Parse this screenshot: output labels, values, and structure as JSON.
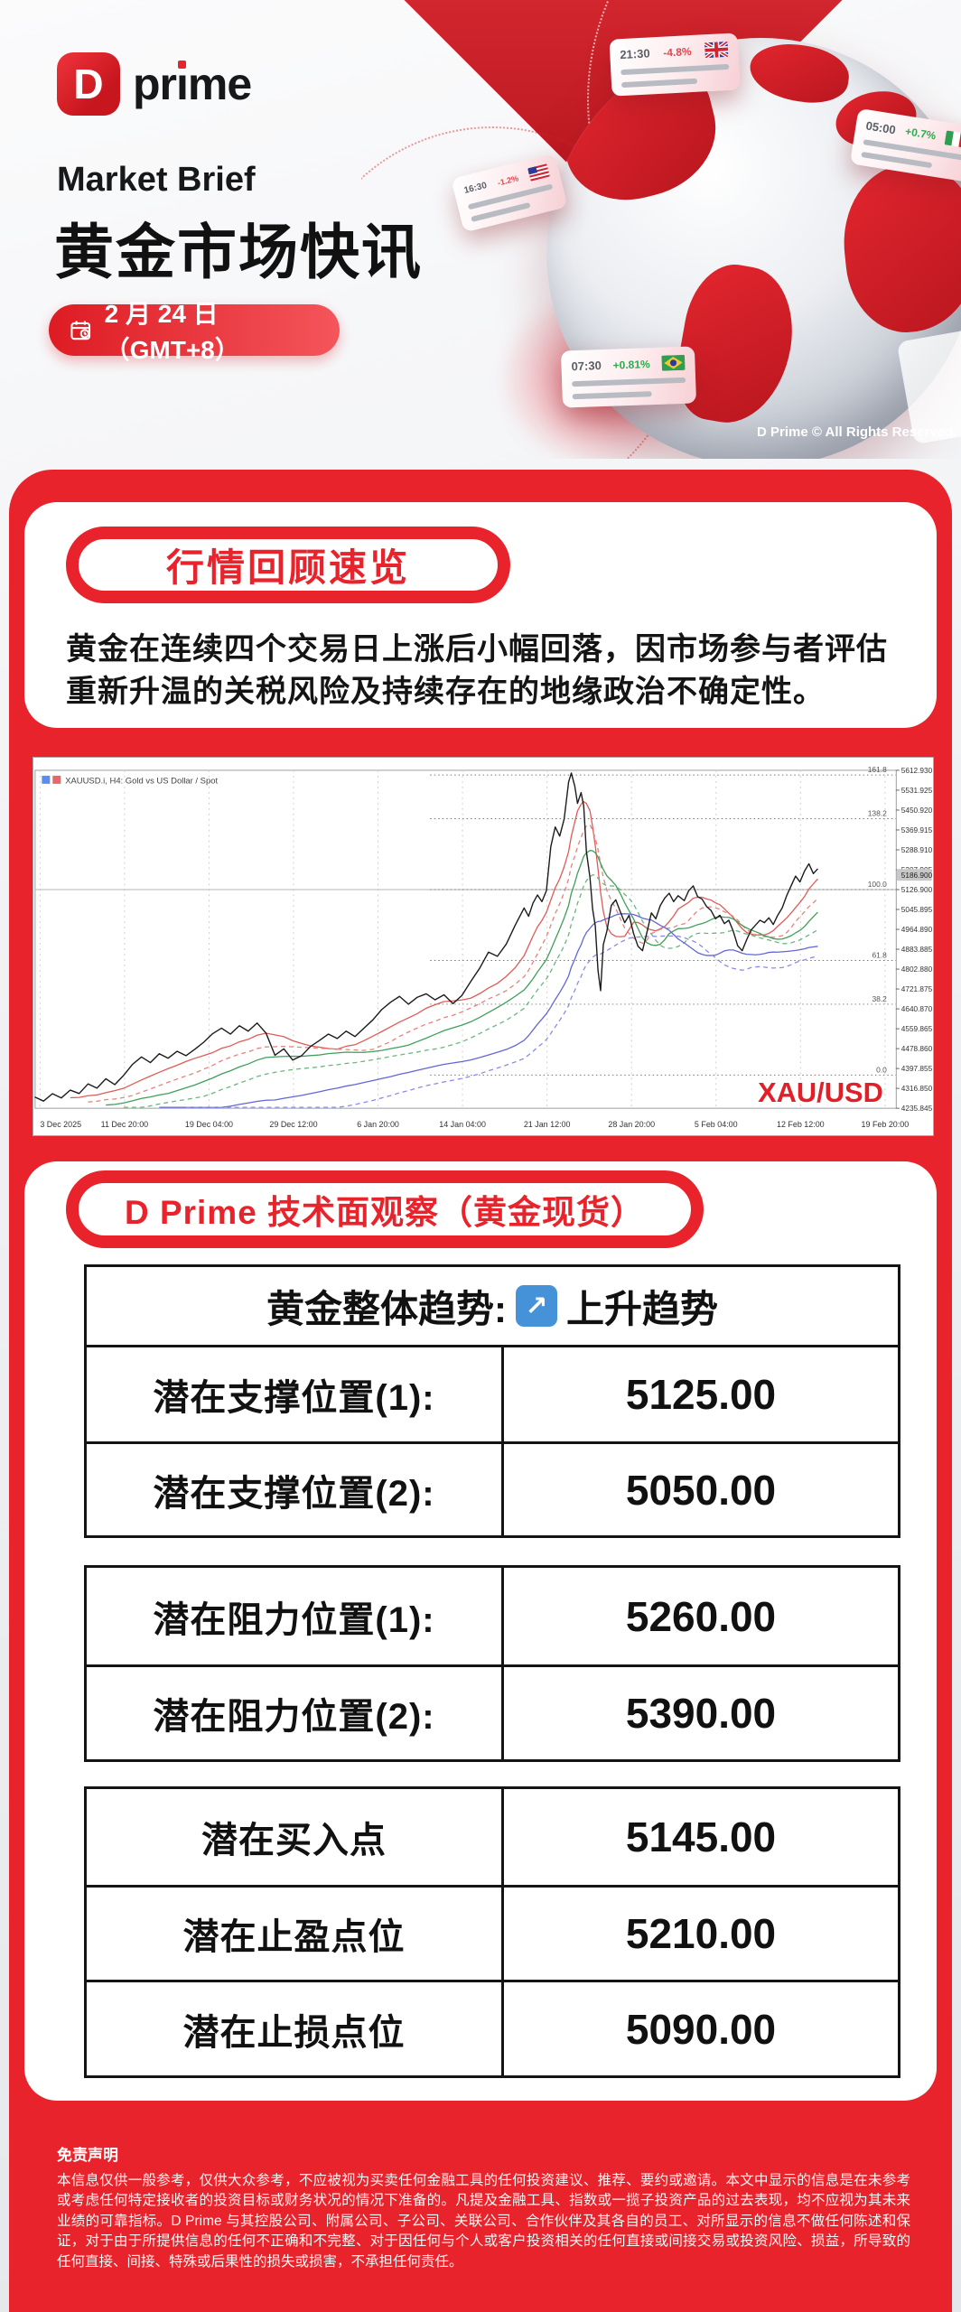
{
  "header": {
    "logo_letter": "D",
    "logo_word": "prime",
    "kicker": "Market Brief",
    "title": "黄金市场快讯",
    "date_badge": "2 月 24 日（GMT+8）",
    "copyright": "D Prime © All Rights Reserved.",
    "ticker_cards": [
      {
        "time": "21:30",
        "change": "-4.8%",
        "direction": "down",
        "flag": "uk"
      },
      {
        "time": "16:30",
        "change": "-1.2%",
        "direction": "down",
        "flag": "us"
      },
      {
        "time": "05:00",
        "change": "+0.7%",
        "direction": "up",
        "flag": "italy"
      },
      {
        "time": "07:30",
        "change": "+0.81%",
        "direction": "up",
        "flag": "brazil"
      }
    ]
  },
  "review": {
    "badge": "行情回顾速览",
    "paragraph": "黄金在连续四个交易日上涨后小幅回落，因市场参与者评估重新升温的关税风险及持续存在的地缘政治不确定性。"
  },
  "chart_data": {
    "type": "line",
    "title": "XAUUSD.i, H4: Gold vs US Dollar / Spot",
    "symbol_label": "XAU/USD",
    "xlabel": "",
    "ylabel": "",
    "ylim": [
      4235.845,
      5612.93
    ],
    "grid": true,
    "legend": "none",
    "y_axis_ticks": [
      5612.93,
      5531.925,
      5450.92,
      5369.915,
      5288.91,
      5207.905,
      5126.9,
      5045.895,
      4964.89,
      4883.885,
      4802.88,
      4721.875,
      4640.87,
      4559.865,
      4478.86,
      4397.855,
      4316.85,
      4235.845
    ],
    "h_line": 5126.9,
    "current_price": "5186.900",
    "x_ticks": [
      "3 Dec 2025",
      "11 Dec 20:00",
      "19 Dec 04:00",
      "29 Dec 12:00",
      "6 Jan 20:00",
      "14 Jan 04:00",
      "21 Jan 12:00",
      "28 Jan 20:00",
      "5 Feb 04:00",
      "12 Feb 12:00",
      "19 Feb 20:00"
    ],
    "fib_levels": [
      {
        "label": "161.8",
        "price": 5594.0
      },
      {
        "label": "138.2",
        "price": 5415.6
      },
      {
        "label": "100.0",
        "price": 5126.9
      },
      {
        "label": "61.8",
        "price": 4838.0
      },
      {
        "label": "38.2",
        "price": 4659.8
      },
      {
        "label": "0.0",
        "price": 4371.0
      }
    ],
    "moving_averages": [
      {
        "color": "#e05b55",
        "window": 8,
        "offset": 2,
        "dashed": false
      },
      {
        "color": "#e5827b",
        "window": 12,
        "offset": 9,
        "dashed": true
      },
      {
        "color": "#3f9f58",
        "window": 16,
        "offset": 15,
        "dashed": false
      },
      {
        "color": "#6ab67e",
        "window": 20,
        "offset": 25,
        "dashed": true
      },
      {
        "color": "#6366d4",
        "window": 28,
        "offset": 42,
        "dashed": false
      },
      {
        "color": "#8a8ce2",
        "window": 34,
        "offset": 56,
        "dashed": true
      }
    ],
    "series": [
      {
        "name": "XAUUSD H4 close",
        "color": "#1b1b1b",
        "points": [
          [
            0,
            4282
          ],
          [
            1,
            4265
          ],
          [
            2,
            4295
          ],
          [
            3,
            4278
          ],
          [
            4,
            4310
          ],
          [
            5,
            4296
          ],
          [
            6,
            4335
          ],
          [
            7,
            4318
          ],
          [
            8,
            4356
          ],
          [
            9,
            4332
          ],
          [
            10,
            4370
          ],
          [
            11,
            4415
          ],
          [
            12,
            4445
          ],
          [
            13,
            4422
          ],
          [
            14,
            4458
          ],
          [
            15,
            4440
          ],
          [
            16,
            4468
          ],
          [
            17,
            4450
          ],
          [
            18,
            4476
          ],
          [
            19,
            4505
          ],
          [
            20,
            4540
          ],
          [
            21,
            4562
          ],
          [
            22,
            4538
          ],
          [
            23,
            4572
          ],
          [
            24,
            4550
          ],
          [
            25,
            4583
          ],
          [
            26,
            4542
          ],
          [
            27,
            4452
          ],
          [
            28,
            4478
          ],
          [
            29,
            4432
          ],
          [
            30,
            4450
          ],
          [
            31,
            4488
          ],
          [
            32,
            4512
          ],
          [
            33,
            4538
          ],
          [
            34,
            4520
          ],
          [
            35,
            4550
          ],
          [
            36,
            4528
          ],
          [
            37,
            4562
          ],
          [
            38,
            4596
          ],
          [
            39,
            4638
          ],
          [
            40,
            4668
          ],
          [
            41,
            4692
          ],
          [
            42,
            4660
          ],
          [
            43,
            4688
          ],
          [
            44,
            4702
          ],
          [
            45,
            4678
          ],
          [
            46,
            4698
          ],
          [
            47,
            4662
          ],
          [
            48,
            4695
          ],
          [
            49,
            4752
          ],
          [
            50,
            4806
          ],
          [
            51,
            4872
          ],
          [
            52,
            4855
          ],
          [
            53,
            4905
          ],
          [
            54,
            4982
          ],
          [
            55,
            5052
          ],
          [
            55.5,
            5018
          ],
          [
            56,
            5072
          ],
          [
            56.5,
            5105
          ],
          [
            57,
            5078
          ],
          [
            57.5,
            5122
          ],
          [
            58,
            5302
          ],
          [
            58.5,
            5382
          ],
          [
            59,
            5345
          ],
          [
            59.5,
            5415
          ],
          [
            60,
            5565
          ],
          [
            60.3,
            5602
          ],
          [
            60.7,
            5548
          ],
          [
            61,
            5478
          ],
          [
            61.4,
            5522
          ],
          [
            61.7,
            5468
          ],
          [
            62,
            5282
          ],
          [
            62.4,
            5175
          ],
          [
            62.7,
            5048
          ],
          [
            63,
            4978
          ],
          [
            63.3,
            4798
          ],
          [
            63.6,
            4715
          ],
          [
            63.9,
            4902
          ],
          [
            64.3,
            4958
          ],
          [
            64.8,
            5062
          ],
          [
            65.3,
            5085
          ],
          [
            65.8,
            5038
          ],
          [
            66.3,
            4992
          ],
          [
            66.8,
            5022
          ],
          [
            67.3,
            4948
          ],
          [
            67.8,
            4896
          ],
          [
            68.3,
            4878
          ],
          [
            68.8,
            4952
          ],
          [
            69.3,
            5032
          ],
          [
            69.8,
            5008
          ],
          [
            70.3,
            5062
          ],
          [
            70.8,
            5092
          ],
          [
            71.3,
            5112
          ],
          [
            71.8,
            5078
          ],
          [
            72.3,
            5102
          ],
          [
            73,
            5082
          ],
          [
            73.5,
            5122
          ],
          [
            74,
            5142
          ],
          [
            74.5,
            5098
          ],
          [
            75,
            5088
          ],
          [
            75.5,
            5058
          ],
          [
            76,
            5042
          ],
          [
            76.5,
            5008
          ],
          [
            77,
            5022
          ],
          [
            77.5,
            4988
          ],
          [
            78,
            5002
          ],
          [
            78.5,
            4958
          ],
          [
            79,
            4898
          ],
          [
            79.5,
            4878
          ],
          [
            80,
            4922
          ],
          [
            80.5,
            4962
          ],
          [
            81,
            4982
          ],
          [
            81.5,
            5002
          ],
          [
            82,
            4992
          ],
          [
            82.5,
            5012
          ],
          [
            83,
            4985
          ],
          [
            83.5,
            5022
          ],
          [
            84,
            5052
          ],
          [
            84.5,
            5102
          ],
          [
            85,
            5142
          ],
          [
            85.5,
            5182
          ],
          [
            86,
            5158
          ],
          [
            86.5,
            5202
          ],
          [
            87,
            5232
          ],
          [
            87.5,
            5192
          ],
          [
            88,
            5212
          ]
        ]
      }
    ]
  },
  "technical": {
    "badge": "D Prime 技术面观察（黄金现货）",
    "trend": {
      "label": "黄金整体趋势:",
      "arrow": "↗",
      "value": "上升趋势"
    },
    "supports": [
      {
        "label": "潜在支撑位置(1):",
        "value": "5125.00"
      },
      {
        "label": "潜在支撑位置(2):",
        "value": "5050.00"
      }
    ],
    "resistances": [
      {
        "label": "潜在阻力位置(1):",
        "value": "5260.00"
      },
      {
        "label": "潜在阻力位置(2):",
        "value": "5390.00"
      }
    ],
    "trade_plan": [
      {
        "label": "潜在买入点",
        "value": "5145.00"
      },
      {
        "label": "潜在止盈点位",
        "value": "5210.00"
      },
      {
        "label": "潜在止损点位",
        "value": "5090.00"
      }
    ]
  },
  "disclaimer": {
    "title": "免责声明",
    "body": "本信息仅供一般参考，仅供大众参考，不应被视为买卖任何金融工具的任何投资建议、推荐、要约或邀请。本文中显示的信息是在未参考或考虑任何特定接收者的投资目标或财务状况的情况下准备的。凡提及金融工具、指数或一揽子投资产品的过去表现，均不应视为其未来业绩的可靠指标。D Prime 与其控股公司、附属公司、子公司、关联公司、合作伙伴及其各自的员工、对所显示的信息不做任何陈述和保证，对于由于所提供信息的任何不正确和不完整、对于因任何与个人或客户投资相关的任何直接或间接交易或投资风险、损益，所导致的任何直接、间接、特殊或后果性的损失或损害，不承担任何责任。"
  }
}
